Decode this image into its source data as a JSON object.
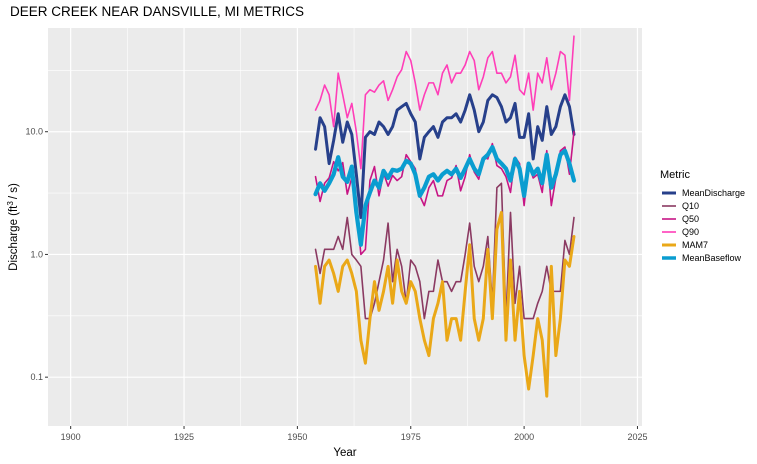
{
  "chart_data": {
    "type": "line",
    "title": "DEER CREEK NEAR DANSVILLE, MI  METRICS",
    "xlabel": "Year",
    "ylabel_main": "Discharge (ft",
    "ylabel_sup": "3",
    "ylabel_tail": "/ s)",
    "xlim": [
      1895,
      2026
    ],
    "ylim": [
      0.04,
      70
    ],
    "y_scale": "log",
    "grid": true,
    "panel_background": "#ebebeb",
    "legend_position": "right",
    "legend_title": "Metric",
    "x_ticks": [
      1900,
      1925,
      1950,
      1975,
      2000,
      2025
    ],
    "x_tick_labels": [
      "1900",
      "1925",
      "1950",
      "1975",
      "2000",
      "2025"
    ],
    "y_ticks": [
      0.1,
      1,
      10
    ],
    "y_tick_labels": [
      "0.1",
      "1.0",
      "10.0"
    ],
    "x": [
      1954,
      1955,
      1956,
      1957,
      1958,
      1959,
      1960,
      1961,
      1962,
      1963,
      1964,
      1965,
      1966,
      1967,
      1968,
      1969,
      1970,
      1971,
      1972,
      1973,
      1974,
      1975,
      1976,
      1977,
      1978,
      1979,
      1980,
      1981,
      1982,
      1983,
      1984,
      1985,
      1986,
      1987,
      1988,
      1989,
      1990,
      1991,
      1992,
      1993,
      1994,
      1995,
      1996,
      1997,
      1998,
      1999,
      2000,
      2001,
      2002,
      2003,
      2004,
      2005,
      2006,
      2007,
      2008,
      2009,
      2010,
      2011
    ],
    "series": [
      {
        "name": "MeanDischarge",
        "color": "#27408b",
        "width": 3,
        "values": [
          7.2,
          13,
          11,
          5.5,
          8.5,
          14,
          8.2,
          12,
          9.5,
          4.5,
          2,
          9,
          10,
          9.5,
          12,
          11,
          9.5,
          11,
          15,
          16,
          17,
          14,
          12,
          6,
          9,
          10,
          11,
          9,
          12,
          13,
          13,
          14,
          12,
          15,
          20,
          15,
          10,
          12,
          18,
          20,
          19,
          16,
          12,
          13,
          17,
          9,
          9,
          14,
          6,
          11,
          8.5,
          16,
          9.5,
          11,
          16,
          20,
          16,
          9.5
        ]
      },
      {
        "name": "Q10",
        "color": "#8b3a62",
        "width": 1.6,
        "values": [
          1.1,
          0.7,
          1.1,
          1.1,
          1.1,
          1.4,
          1.1,
          2.0,
          1.0,
          0.9,
          0.8,
          0.3,
          0.3,
          0.4,
          0.6,
          0.9,
          1.8,
          0.6,
          1.1,
          0.8,
          0.4,
          0.9,
          0.8,
          0.6,
          0.3,
          0.5,
          0.5,
          0.9,
          0.6,
          0.6,
          0.5,
          0.6,
          0.6,
          1.0,
          1.8,
          0.8,
          0.6,
          0.8,
          1.4,
          0.4,
          3.5,
          3.8,
          0.3,
          2.2,
          0.4,
          0.8,
          0.3,
          0.3,
          0.3,
          0.4,
          0.5,
          0.8,
          0.5,
          0.5,
          0.5,
          1.3,
          1.0,
          2.0
        ]
      },
      {
        "name": "Q50",
        "color": "#c71585",
        "width": 1.6,
        "values": [
          4.3,
          2.7,
          3.8,
          4.2,
          5.7,
          4.8,
          5.6,
          3.1,
          4.2,
          2.5,
          1.0,
          1.1,
          4.0,
          5.2,
          3.0,
          4.6,
          3.6,
          4.4,
          4.0,
          4.3,
          6.5,
          5.7,
          5.0,
          3.0,
          2.5,
          3.5,
          4.0,
          3.0,
          3.0,
          4.0,
          4.2,
          5.3,
          3.3,
          4.3,
          6.5,
          4.7,
          4.1,
          6.2,
          6.0,
          8.0,
          5.3,
          5.0,
          4.3,
          3.2,
          6.2,
          5.5,
          2.5,
          5.5,
          4.2,
          4.5,
          3.2,
          7.0,
          2.5,
          4.2,
          7.0,
          7.5,
          4.5,
          10.0
        ]
      },
      {
        "name": "Q90",
        "color": "#ff3eb8",
        "width": 1.6,
        "values": [
          15,
          18,
          24,
          20,
          11,
          30,
          20,
          13,
          17,
          10,
          5,
          20,
          22,
          21,
          24,
          26,
          18,
          22,
          28,
          32,
          45,
          38,
          25,
          15,
          20,
          25,
          25,
          20,
          30,
          35,
          25,
          30,
          30,
          35,
          45,
          38,
          22,
          28,
          40,
          45,
          30,
          30,
          25,
          28,
          42,
          22,
          20,
          30,
          15,
          30,
          25,
          40,
          22,
          30,
          45,
          42,
          18,
          60
        ]
      },
      {
        "name": "MAM7",
        "color": "#eaa818",
        "width": 3,
        "values": [
          0.8,
          0.4,
          0.8,
          0.9,
          0.7,
          0.5,
          0.8,
          0.9,
          0.7,
          0.5,
          0.2,
          0.13,
          0.3,
          0.6,
          0.35,
          0.5,
          0.8,
          0.4,
          0.9,
          0.5,
          0.4,
          0.6,
          0.5,
          0.3,
          0.2,
          0.15,
          0.3,
          0.4,
          0.6,
          0.2,
          0.3,
          0.3,
          0.2,
          0.5,
          1.2,
          0.3,
          0.2,
          0.3,
          1.1,
          0.3,
          1.6,
          2.2,
          0.2,
          0.9,
          0.2,
          0.5,
          0.15,
          0.08,
          0.15,
          0.3,
          0.2,
          0.07,
          0.8,
          0.15,
          0.3,
          0.9,
          0.8,
          1.4
        ]
      },
      {
        "name": "MeanBaseflow",
        "color": "#0a9dd0",
        "width": 4.2,
        "values": [
          3.1,
          3.8,
          3.3,
          3.8,
          4.5,
          6.2,
          4.3,
          3.9,
          5.2,
          2.2,
          1.2,
          2.5,
          3.2,
          4.0,
          3.5,
          4.8,
          4.2,
          4.9,
          4.8,
          5.0,
          5.8,
          5.5,
          4.5,
          3.0,
          3.5,
          4.3,
          4.5,
          4.0,
          4.5,
          4.8,
          4.5,
          5.0,
          4.2,
          5.0,
          6.0,
          5.0,
          4.5,
          6.0,
          6.5,
          7.5,
          6.0,
          5.5,
          5.0,
          4.0,
          6.0,
          5.0,
          3.0,
          5.5,
          4.5,
          5.0,
          3.8,
          6.5,
          3.5,
          4.5,
          6.5,
          7.0,
          5.5,
          4.0
        ]
      }
    ]
  }
}
